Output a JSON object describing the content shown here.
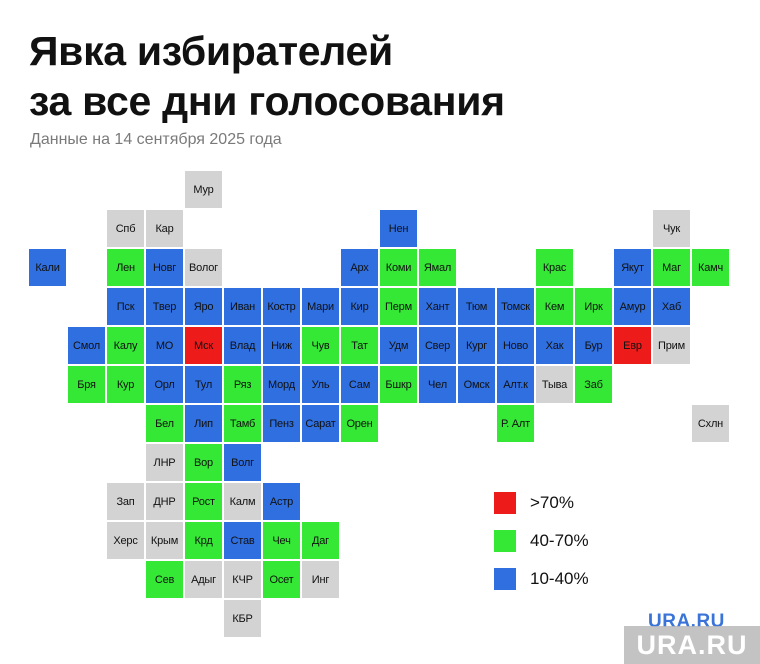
{
  "title": {
    "line1": "Явка избирателей",
    "line2": "за все дни голосования"
  },
  "subtitle": "Данные на 14 сентября 2025 года",
  "colors": {
    "high": "#ee1b1b",
    "mid": "#35e835",
    "low": "#2f6fe0",
    "none": "#d3d3d3"
  },
  "legend": [
    {
      "label": ">70%",
      "category": "high"
    },
    {
      "label": "40-70%",
      "category": "mid"
    },
    {
      "label": "10-40%",
      "category": "low"
    }
  ],
  "regions": [
    {
      "label": "Мур",
      "col": 4,
      "row": 0,
      "category": "none"
    },
    {
      "label": "Спб",
      "col": 2,
      "row": 1,
      "category": "none"
    },
    {
      "label": "Кар",
      "col": 3,
      "row": 1,
      "category": "none"
    },
    {
      "label": "Нен",
      "col": 9,
      "row": 1,
      "category": "low"
    },
    {
      "label": "Чук",
      "col": 16,
      "row": 1,
      "category": "none"
    },
    {
      "label": "Кали",
      "col": 0,
      "row": 2,
      "category": "low"
    },
    {
      "label": "Лен",
      "col": 2,
      "row": 2,
      "category": "mid"
    },
    {
      "label": "Новг",
      "col": 3,
      "row": 2,
      "category": "low"
    },
    {
      "label": "Волог",
      "col": 4,
      "row": 2,
      "category": "none"
    },
    {
      "label": "Арх",
      "col": 8,
      "row": 2,
      "category": "low"
    },
    {
      "label": "Коми",
      "col": 9,
      "row": 2,
      "category": "mid"
    },
    {
      "label": "Ямал",
      "col": 10,
      "row": 2,
      "category": "mid"
    },
    {
      "label": "Крас",
      "col": 13,
      "row": 2,
      "category": "mid"
    },
    {
      "label": "Якут",
      "col": 15,
      "row": 2,
      "category": "low"
    },
    {
      "label": "Маг",
      "col": 16,
      "row": 2,
      "category": "mid"
    },
    {
      "label": "Камч",
      "col": 17,
      "row": 2,
      "category": "mid"
    },
    {
      "label": "Пск",
      "col": 2,
      "row": 3,
      "category": "low"
    },
    {
      "label": "Твер",
      "col": 3,
      "row": 3,
      "category": "low"
    },
    {
      "label": "Яро",
      "col": 4,
      "row": 3,
      "category": "low"
    },
    {
      "label": "Иван",
      "col": 5,
      "row": 3,
      "category": "low"
    },
    {
      "label": "Костр",
      "col": 6,
      "row": 3,
      "category": "low"
    },
    {
      "label": "Мари",
      "col": 7,
      "row": 3,
      "category": "low"
    },
    {
      "label": "Кир",
      "col": 8,
      "row": 3,
      "category": "low"
    },
    {
      "label": "Перм",
      "col": 9,
      "row": 3,
      "category": "mid"
    },
    {
      "label": "Хант",
      "col": 10,
      "row": 3,
      "category": "low"
    },
    {
      "label": "Тюм",
      "col": 11,
      "row": 3,
      "category": "low"
    },
    {
      "label": "Томск",
      "col": 12,
      "row": 3,
      "category": "low"
    },
    {
      "label": "Кем",
      "col": 13,
      "row": 3,
      "category": "mid"
    },
    {
      "label": "Ирк",
      "col": 14,
      "row": 3,
      "category": "mid"
    },
    {
      "label": "Амур",
      "col": 15,
      "row": 3,
      "category": "low"
    },
    {
      "label": "Хаб",
      "col": 16,
      "row": 3,
      "category": "low"
    },
    {
      "label": "Смол",
      "col": 1,
      "row": 4,
      "category": "low"
    },
    {
      "label": "Калу",
      "col": 2,
      "row": 4,
      "category": "mid"
    },
    {
      "label": "МО",
      "col": 3,
      "row": 4,
      "category": "low"
    },
    {
      "label": "Мск",
      "col": 4,
      "row": 4,
      "category": "high"
    },
    {
      "label": "Влад",
      "col": 5,
      "row": 4,
      "category": "low"
    },
    {
      "label": "Ниж",
      "col": 6,
      "row": 4,
      "category": "low"
    },
    {
      "label": "Чув",
      "col": 7,
      "row": 4,
      "category": "mid"
    },
    {
      "label": "Тат",
      "col": 8,
      "row": 4,
      "category": "mid"
    },
    {
      "label": "Удм",
      "col": 9,
      "row": 4,
      "category": "low"
    },
    {
      "label": "Свер",
      "col": 10,
      "row": 4,
      "category": "low"
    },
    {
      "label": "Кург",
      "col": 11,
      "row": 4,
      "category": "low"
    },
    {
      "label": "Ново",
      "col": 12,
      "row": 4,
      "category": "low"
    },
    {
      "label": "Хак",
      "col": 13,
      "row": 4,
      "category": "low"
    },
    {
      "label": "Бур",
      "col": 14,
      "row": 4,
      "category": "low"
    },
    {
      "label": "Евр",
      "col": 15,
      "row": 4,
      "category": "high"
    },
    {
      "label": "Прим",
      "col": 16,
      "row": 4,
      "category": "none"
    },
    {
      "label": "Бря",
      "col": 1,
      "row": 5,
      "category": "mid"
    },
    {
      "label": "Кур",
      "col": 2,
      "row": 5,
      "category": "mid"
    },
    {
      "label": "Орл",
      "col": 3,
      "row": 5,
      "category": "low"
    },
    {
      "label": "Тул",
      "col": 4,
      "row": 5,
      "category": "low"
    },
    {
      "label": "Ряз",
      "col": 5,
      "row": 5,
      "category": "mid"
    },
    {
      "label": "Морд",
      "col": 6,
      "row": 5,
      "category": "low"
    },
    {
      "label": "Уль",
      "col": 7,
      "row": 5,
      "category": "low"
    },
    {
      "label": "Сам",
      "col": 8,
      "row": 5,
      "category": "low"
    },
    {
      "label": "Бшкр",
      "col": 9,
      "row": 5,
      "category": "mid"
    },
    {
      "label": "Чел",
      "col": 10,
      "row": 5,
      "category": "low"
    },
    {
      "label": "Омск",
      "col": 11,
      "row": 5,
      "category": "low"
    },
    {
      "label": "Алт.к",
      "col": 12,
      "row": 5,
      "category": "low"
    },
    {
      "label": "Тыва",
      "col": 13,
      "row": 5,
      "category": "none"
    },
    {
      "label": "Заб",
      "col": 14,
      "row": 5,
      "category": "mid"
    },
    {
      "label": "Бел",
      "col": 3,
      "row": 6,
      "category": "mid"
    },
    {
      "label": "Лип",
      "col": 4,
      "row": 6,
      "category": "low"
    },
    {
      "label": "Тамб",
      "col": 5,
      "row": 6,
      "category": "mid"
    },
    {
      "label": "Пенз",
      "col": 6,
      "row": 6,
      "category": "low"
    },
    {
      "label": "Сарат",
      "col": 7,
      "row": 6,
      "category": "low"
    },
    {
      "label": "Орен",
      "col": 8,
      "row": 6,
      "category": "mid"
    },
    {
      "label": "Р. Алт",
      "col": 12,
      "row": 6,
      "category": "mid"
    },
    {
      "label": "Схлн",
      "col": 17,
      "row": 6,
      "category": "none"
    },
    {
      "label": "ЛНР",
      "col": 3,
      "row": 7,
      "category": "none"
    },
    {
      "label": "Вор",
      "col": 4,
      "row": 7,
      "category": "mid"
    },
    {
      "label": "Волг",
      "col": 5,
      "row": 7,
      "category": "low"
    },
    {
      "label": "Зап",
      "col": 2,
      "row": 8,
      "category": "none"
    },
    {
      "label": "ДНР",
      "col": 3,
      "row": 8,
      "category": "none"
    },
    {
      "label": "Рост",
      "col": 4,
      "row": 8,
      "category": "mid"
    },
    {
      "label": "Калм",
      "col": 5,
      "row": 8,
      "category": "none"
    },
    {
      "label": "Астр",
      "col": 6,
      "row": 8,
      "category": "low"
    },
    {
      "label": "Херс",
      "col": 2,
      "row": 9,
      "category": "none"
    },
    {
      "label": "Крым",
      "col": 3,
      "row": 9,
      "category": "none"
    },
    {
      "label": "Крд",
      "col": 4,
      "row": 9,
      "category": "mid"
    },
    {
      "label": "Став",
      "col": 5,
      "row": 9,
      "category": "low"
    },
    {
      "label": "Чеч",
      "col": 6,
      "row": 9,
      "category": "mid"
    },
    {
      "label": "Даг",
      "col": 7,
      "row": 9,
      "category": "mid"
    },
    {
      "label": "Сев",
      "col": 3,
      "row": 10,
      "category": "mid"
    },
    {
      "label": "Адыг",
      "col": 4,
      "row": 10,
      "category": "none"
    },
    {
      "label": "КЧР",
      "col": 5,
      "row": 10,
      "category": "none"
    },
    {
      "label": "Осет",
      "col": 6,
      "row": 10,
      "category": "mid"
    },
    {
      "label": "Инг",
      "col": 7,
      "row": 10,
      "category": "none"
    },
    {
      "label": "КБР",
      "col": 5,
      "row": 11,
      "category": "none"
    }
  ],
  "logo": "URA.RU",
  "watermark": "URA.RU"
}
